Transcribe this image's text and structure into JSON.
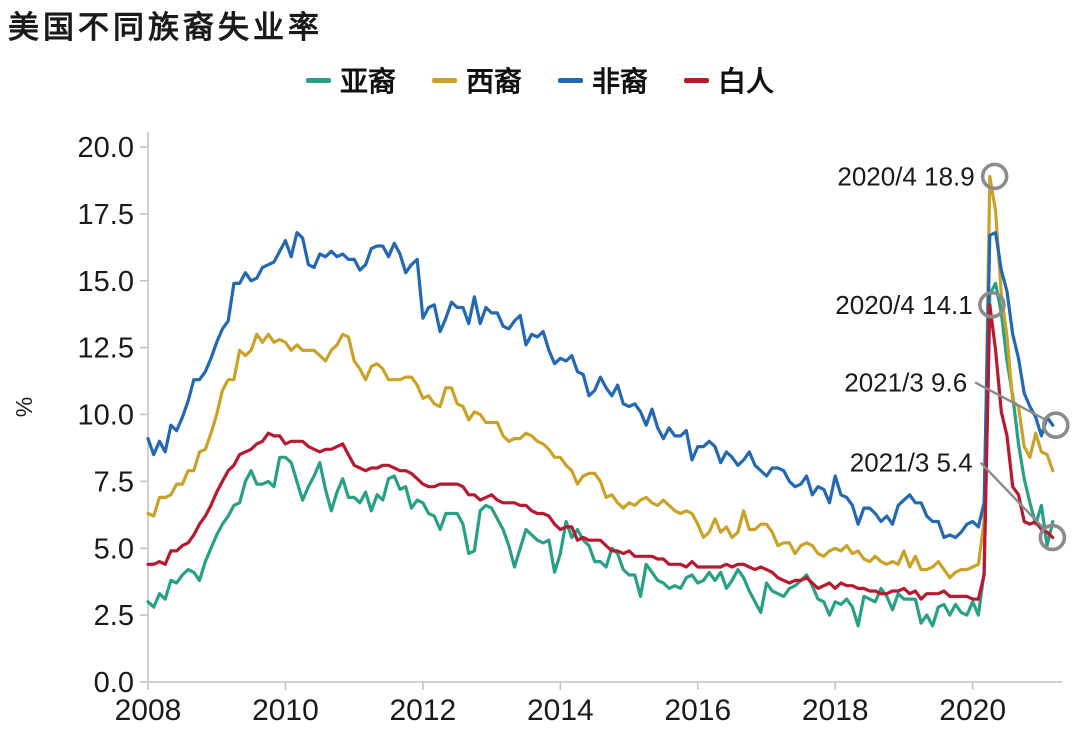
{
  "title": "美国不同族裔失业率",
  "chart_data": {
    "type": "line",
    "title": "美国不同族裔失业率",
    "xlabel": "",
    "ylabel": "%",
    "grid": false,
    "legend_position": "top",
    "x_axis": {
      "min": 2008,
      "max": 2021.3,
      "ticks": [
        2008,
        2010,
        2012,
        2014,
        2016,
        2018,
        2020
      ]
    },
    "y_axis": {
      "min": 0,
      "max": 20,
      "ticks": [
        0.0,
        2.5,
        5.0,
        7.5,
        10.0,
        12.5,
        15.0,
        17.5,
        20.0
      ]
    },
    "x_start_year": 2008.0,
    "x_step": "monthly",
    "axis_color": "#c4c4c4",
    "annotation_color": "#8b8b8b",
    "series": [
      {
        "name": "亚裔",
        "slug": "asian",
        "color": "#28a085",
        "values": [
          3.0,
          2.8,
          3.3,
          3.1,
          3.8,
          3.7,
          4.0,
          4.2,
          4.1,
          3.8,
          4.5,
          5.0,
          5.5,
          5.9,
          6.2,
          6.6,
          6.7,
          7.5,
          7.9,
          7.4,
          7.4,
          7.5,
          7.3,
          8.4,
          8.4,
          8.2,
          7.5,
          6.8,
          7.3,
          7.7,
          8.2,
          7.2,
          6.4,
          7.1,
          7.6,
          6.9,
          6.9,
          6.7,
          7.1,
          6.4,
          7.0,
          6.8,
          7.6,
          7.7,
          7.2,
          7.3,
          6.5,
          6.8,
          6.7,
          6.3,
          6.2,
          5.7,
          6.3,
          6.3,
          6.3,
          5.9,
          4.8,
          4.9,
          6.4,
          6.6,
          6.5,
          6.1,
          5.7,
          5.1,
          4.3,
          5.0,
          5.7,
          5.5,
          5.3,
          5.2,
          5.3,
          4.1,
          4.8,
          6.0,
          5.4,
          5.7,
          5.3,
          5.1,
          4.5,
          4.5,
          4.3,
          5.0,
          4.8,
          4.2,
          4.0,
          4.0,
          3.2,
          4.4,
          4.1,
          3.8,
          3.7,
          3.5,
          3.6,
          3.5,
          3.9,
          4.0,
          3.7,
          3.8,
          4.1,
          3.8,
          4.1,
          3.5,
          3.8,
          4.2,
          3.9,
          3.4,
          3.0,
          2.6,
          3.7,
          3.4,
          3.3,
          3.2,
          3.5,
          3.6,
          3.8,
          4.0,
          3.6,
          3.1,
          3.0,
          2.5,
          3.0,
          2.9,
          3.1,
          2.8,
          2.1,
          3.2,
          3.1,
          3.0,
          3.5,
          3.2,
          2.7,
          3.3,
          3.1,
          3.1,
          3.1,
          2.2,
          2.5,
          2.1,
          2.8,
          2.9,
          2.5,
          2.9,
          2.6,
          2.5,
          3.0,
          2.5,
          4.1,
          14.5,
          14.9,
          13.8,
          12.0,
          10.7,
          8.9,
          7.6,
          6.7,
          5.9,
          6.6,
          5.1,
          6.0
        ]
      },
      {
        "name": "西裔",
        "slug": "hispanic",
        "color": "#c9a227",
        "values": [
          6.3,
          6.2,
          6.9,
          6.9,
          7.0,
          7.4,
          7.4,
          7.9,
          7.9,
          8.6,
          8.7,
          9.3,
          10.0,
          10.9,
          11.3,
          11.3,
          12.4,
          12.2,
          12.4,
          13.0,
          12.7,
          13.0,
          12.7,
          12.8,
          12.7,
          12.4,
          12.6,
          12.4,
          12.4,
          12.4,
          12.2,
          12.0,
          12.4,
          12.6,
          13.0,
          12.9,
          12.0,
          11.7,
          11.3,
          11.8,
          11.9,
          11.7,
          11.3,
          11.3,
          11.3,
          11.4,
          11.4,
          11.1,
          10.6,
          10.7,
          10.4,
          10.3,
          11.0,
          11.0,
          10.4,
          10.3,
          9.8,
          10.1,
          10.0,
          9.7,
          9.7,
          9.7,
          9.2,
          9.0,
          9.1,
          9.1,
          9.3,
          9.2,
          9.0,
          8.9,
          8.7,
          8.4,
          8.4,
          8.1,
          7.9,
          7.4,
          7.7,
          7.8,
          7.8,
          7.5,
          6.9,
          7.0,
          6.7,
          6.5,
          6.7,
          6.6,
          6.8,
          6.9,
          6.7,
          6.6,
          6.8,
          6.6,
          6.4,
          6.3,
          6.4,
          6.3,
          5.9,
          5.4,
          5.6,
          6.1,
          5.6,
          5.8,
          5.4,
          5.6,
          6.4,
          5.7,
          5.7,
          5.9,
          5.9,
          5.6,
          5.1,
          5.2,
          5.2,
          4.8,
          5.1,
          5.2,
          5.1,
          4.8,
          4.7,
          4.9,
          5.0,
          4.9,
          5.1,
          4.8,
          4.9,
          4.6,
          4.5,
          4.7,
          4.5,
          4.4,
          4.5,
          4.4,
          4.9,
          4.3,
          4.7,
          4.2,
          4.2,
          4.3,
          4.5,
          4.2,
          3.9,
          4.1,
          4.2,
          4.2,
          4.3,
          4.4,
          6.0,
          18.9,
          17.6,
          14.5,
          12.9,
          10.5,
          10.3,
          8.8,
          8.4,
          9.3,
          8.6,
          8.5,
          7.9
        ]
      },
      {
        "name": "非裔",
        "slug": "black",
        "color": "#2268b2",
        "values": [
          9.1,
          8.5,
          9.0,
          8.6,
          9.6,
          9.4,
          9.9,
          10.5,
          11.3,
          11.3,
          11.6,
          12.1,
          12.7,
          13.2,
          13.5,
          14.9,
          14.9,
          15.3,
          15.0,
          15.1,
          15.5,
          15.6,
          15.7,
          16.1,
          16.5,
          15.9,
          16.8,
          16.6,
          15.6,
          15.5,
          16.0,
          15.9,
          16.1,
          15.9,
          16.0,
          15.8,
          15.8,
          15.4,
          15.6,
          16.2,
          16.3,
          16.3,
          15.9,
          16.4,
          16.0,
          15.3,
          15.6,
          15.8,
          13.6,
          14.0,
          14.1,
          13.1,
          13.6,
          14.2,
          14.0,
          14.0,
          13.4,
          14.4,
          13.4,
          14.0,
          13.8,
          13.8,
          13.3,
          13.2,
          13.5,
          13.7,
          12.6,
          13.0,
          12.9,
          13.1,
          12.4,
          11.9,
          12.1,
          12.0,
          12.2,
          11.6,
          11.5,
          10.7,
          10.9,
          11.4,
          11.0,
          10.7,
          11.1,
          10.4,
          10.3,
          10.4,
          10.1,
          9.6,
          10.2,
          9.5,
          9.1,
          9.5,
          9.2,
          9.2,
          9.4,
          8.3,
          8.8,
          8.8,
          9.0,
          8.8,
          8.2,
          8.6,
          8.4,
          8.1,
          8.3,
          8.6,
          8.1,
          7.9,
          7.7,
          8.0,
          8.0,
          7.9,
          7.5,
          7.3,
          7.4,
          7.7,
          7.0,
          7.3,
          7.2,
          6.7,
          7.7,
          7.0,
          6.9,
          6.6,
          5.9,
          6.5,
          6.5,
          6.3,
          6.0,
          6.2,
          5.9,
          6.6,
          6.8,
          7.0,
          6.7,
          6.7,
          6.2,
          6.0,
          6.0,
          5.4,
          5.5,
          5.4,
          5.6,
          5.9,
          6.0,
          5.8,
          6.7,
          16.7,
          16.8,
          15.4,
          14.6,
          13.0,
          12.1,
          10.8,
          10.3,
          9.9,
          9.2,
          9.9,
          9.6
        ]
      },
      {
        "name": "白人",
        "slug": "white",
        "color": "#b7192f",
        "values": [
          4.4,
          4.4,
          4.5,
          4.4,
          4.9,
          4.9,
          5.1,
          5.2,
          5.5,
          5.9,
          6.2,
          6.6,
          7.1,
          7.5,
          7.9,
          8.1,
          8.5,
          8.6,
          8.7,
          8.9,
          9.0,
          9.3,
          9.2,
          9.2,
          8.9,
          9.0,
          9.0,
          9.0,
          8.8,
          8.7,
          8.6,
          8.7,
          8.7,
          8.8,
          8.9,
          8.5,
          8.1,
          8.0,
          7.9,
          8.0,
          8.0,
          8.1,
          8.1,
          8.0,
          7.9,
          7.9,
          7.8,
          7.6,
          7.4,
          7.3,
          7.3,
          7.4,
          7.4,
          7.4,
          7.4,
          7.3,
          7.0,
          7.0,
          6.8,
          6.9,
          7.0,
          6.8,
          6.7,
          6.7,
          6.7,
          6.6,
          6.6,
          6.4,
          6.3,
          6.3,
          6.2,
          5.9,
          5.7,
          5.8,
          5.8,
          5.3,
          5.4,
          5.3,
          5.3,
          5.3,
          5.1,
          4.9,
          4.9,
          4.8,
          4.9,
          4.7,
          4.7,
          4.7,
          4.7,
          4.6,
          4.6,
          4.4,
          4.4,
          4.4,
          4.3,
          4.5,
          4.3,
          4.3,
          4.3,
          4.3,
          4.3,
          4.4,
          4.3,
          4.4,
          4.4,
          4.3,
          4.2,
          4.3,
          4.2,
          4.1,
          3.9,
          3.8,
          3.7,
          3.8,
          3.8,
          3.9,
          3.7,
          3.5,
          3.6,
          3.7,
          3.5,
          3.7,
          3.6,
          3.6,
          3.5,
          3.5,
          3.4,
          3.4,
          3.3,
          3.3,
          3.4,
          3.4,
          3.5,
          3.3,
          3.4,
          3.1,
          3.3,
          3.3,
          3.3,
          3.4,
          3.2,
          3.2,
          3.2,
          3.2,
          3.1,
          3.1,
          4.0,
          14.1,
          12.4,
          10.1,
          9.2,
          7.3,
          7.0,
          6.0,
          5.9,
          6.0,
          5.7,
          5.6,
          5.4
        ]
      }
    ],
    "annotations": [
      {
        "text": "2020/4 18.9",
        "point": {
          "x": 2020.32,
          "y": 18.9
        },
        "label": {
          "x": 2020.03,
          "y": 18.9
        },
        "connector": false
      },
      {
        "text": "2020/4 14.1",
        "point": {
          "x": 2020.28,
          "y": 14.1
        },
        "label": {
          "x": 2020.0,
          "y": 14.1
        },
        "connector": false
      },
      {
        "text": "2021/3 9.6",
        "point": {
          "x": 2021.21,
          "y": 9.6
        },
        "label": {
          "x": 2019.92,
          "y": 11.2
        },
        "connector": true
      },
      {
        "text": "2021/3 5.4",
        "point": {
          "x": 2021.16,
          "y": 5.4
        },
        "label": {
          "x": 2020.0,
          "y": 8.2
        },
        "connector": true
      }
    ]
  }
}
